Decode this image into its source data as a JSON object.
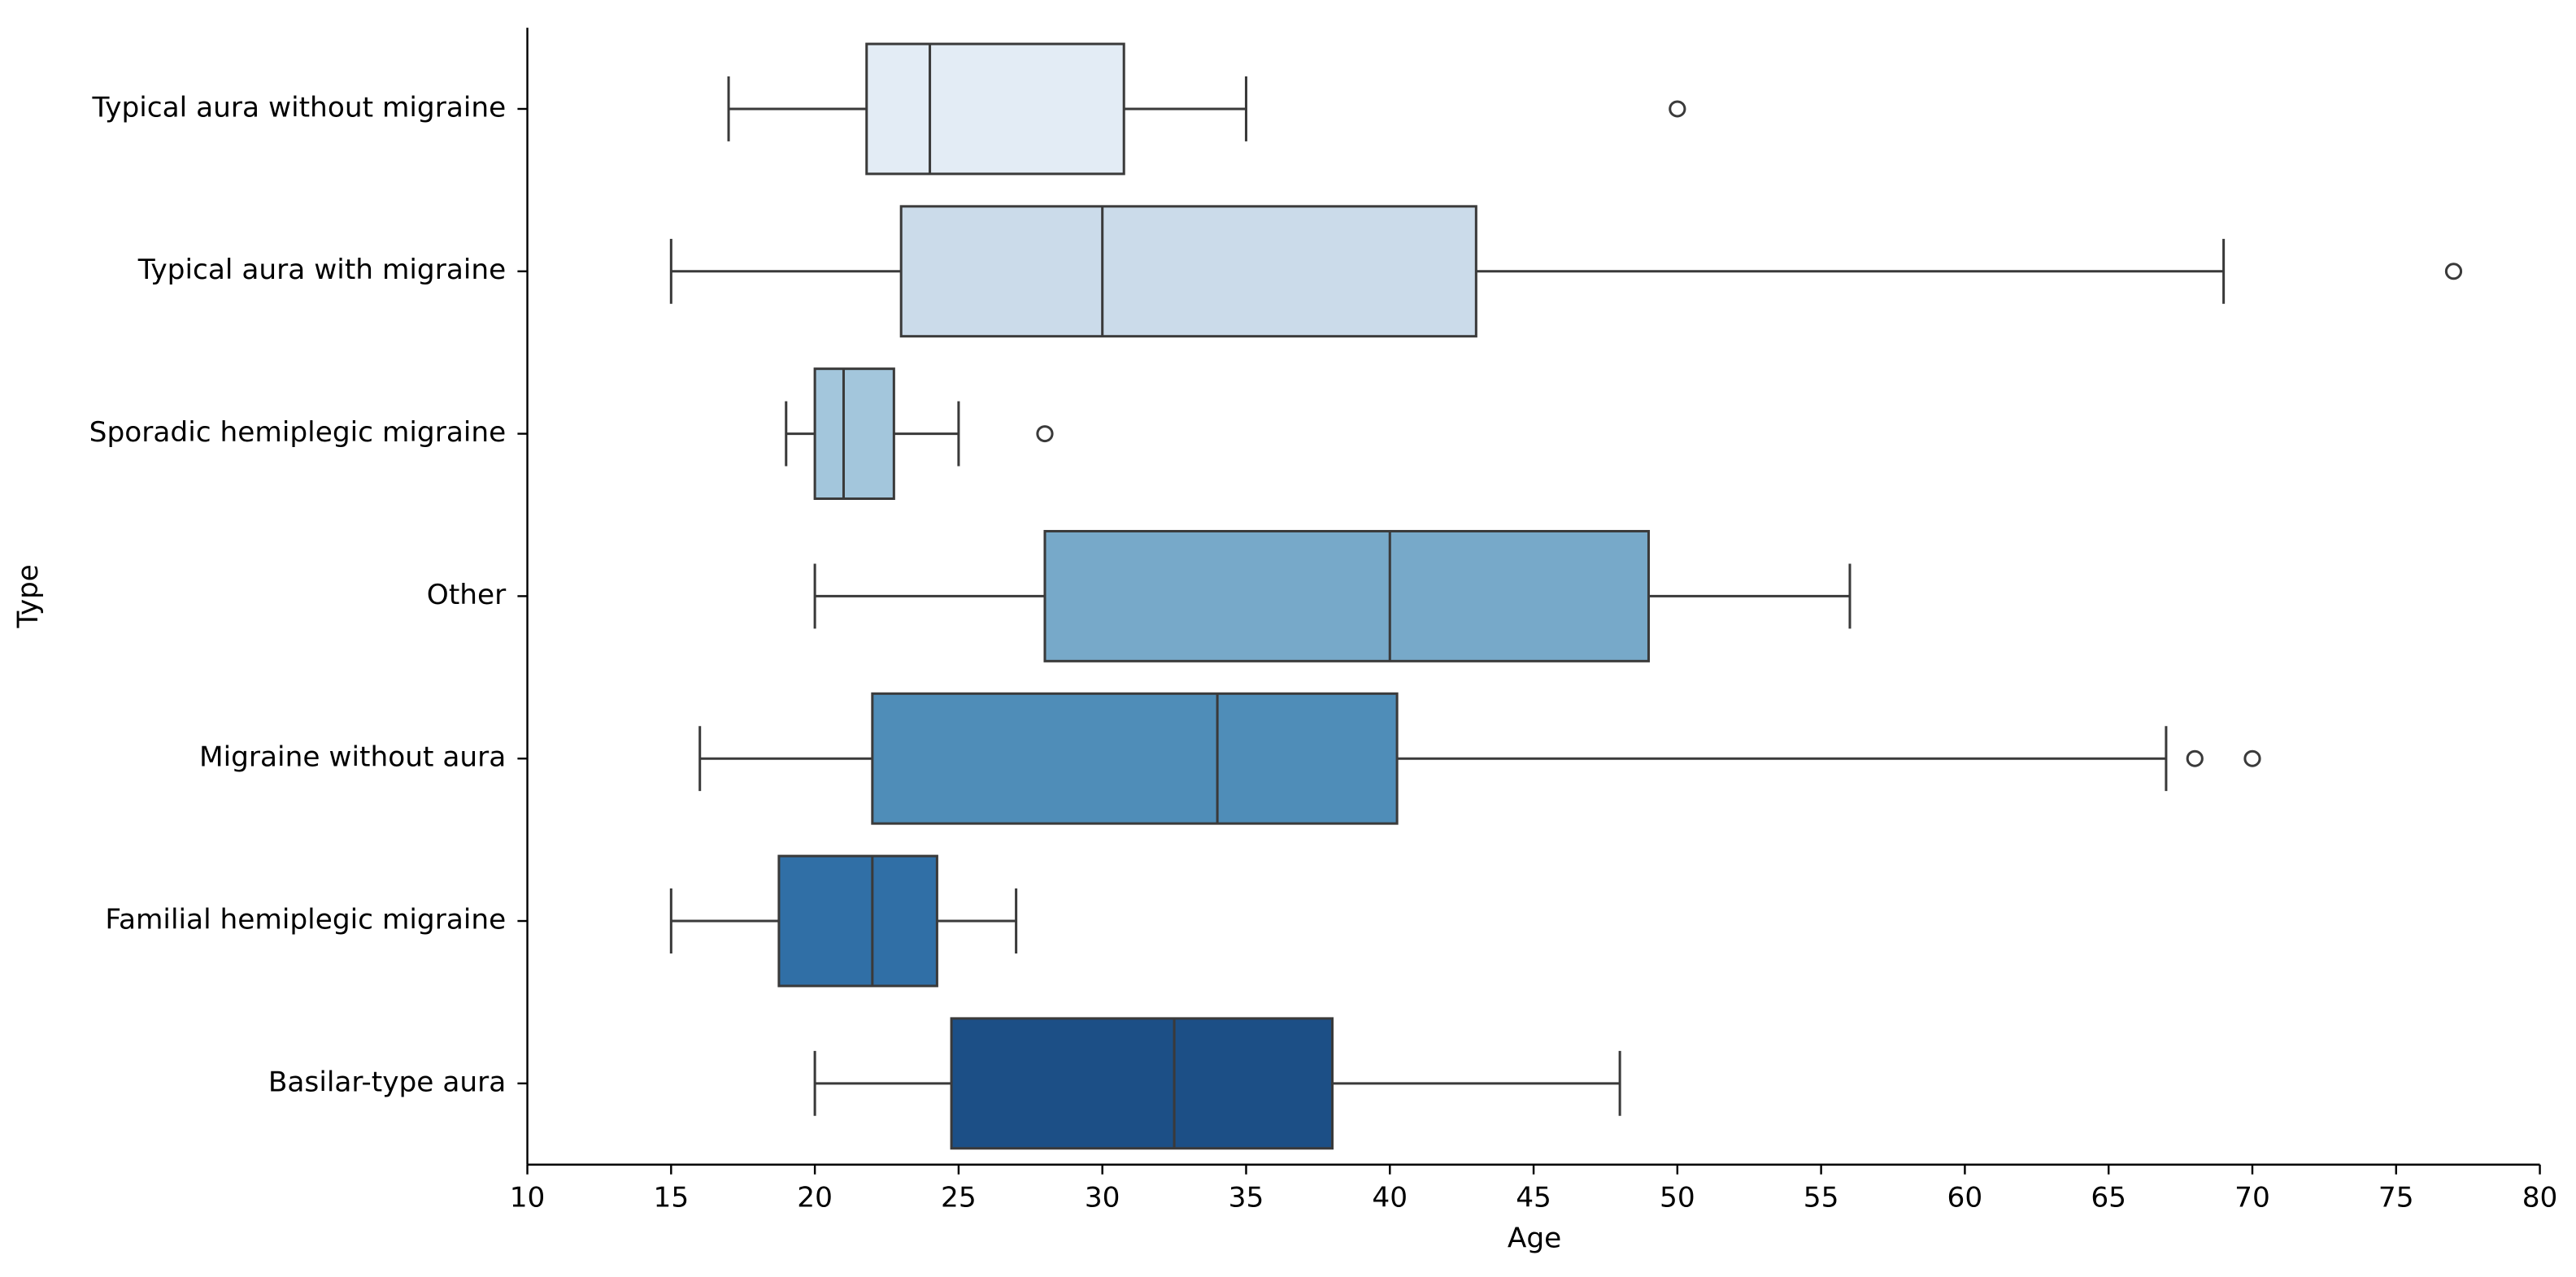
{
  "chart_data": {
    "type": "box",
    "x_label": "Age",
    "y_label": "Type",
    "categories": [
      "Typical aura without migraine",
      "Typical aura with migraine",
      "Sporadic hemiplegic migraine",
      "Other",
      "Migraine without aura",
      "Familial hemiplegic migraine",
      "Basilar-type aura"
    ],
    "colors": [
      "#e3ecf5",
      "#cbdbea",
      "#a3c6dc",
      "#77a9c9",
      "#4f8db8",
      "#306fa6",
      "#1c4f86"
    ],
    "boxes": [
      {
        "low": 17,
        "q1": 21.8,
        "median": 24,
        "q3": 30.75,
        "high": 35,
        "outliers": [
          50
        ]
      },
      {
        "low": 15,
        "q1": 23,
        "median": 30,
        "q3": 43,
        "high": 69,
        "outliers": [
          77
        ]
      },
      {
        "low": 19,
        "q1": 20,
        "median": 21,
        "q3": 22.75,
        "high": 25,
        "outliers": [
          28
        ]
      },
      {
        "low": 20,
        "q1": 28,
        "median": 40,
        "q3": 49,
        "high": 56,
        "outliers": []
      },
      {
        "low": 16,
        "q1": 22,
        "median": 34,
        "q3": 40.25,
        "high": 67,
        "outliers": [
          68,
          70
        ]
      },
      {
        "low": 15,
        "q1": 18.75,
        "median": 22,
        "q3": 24.25,
        "high": 27,
        "outliers": []
      },
      {
        "low": 20,
        "q1": 24.75,
        "median": 32.5,
        "q3": 38,
        "high": 48,
        "outliers": []
      }
    ],
    "xlim": [
      10,
      80
    ],
    "xticks": [
      10,
      15,
      20,
      25,
      30,
      35,
      40,
      45,
      50,
      55,
      60,
      65,
      70,
      75,
      80
    ]
  }
}
